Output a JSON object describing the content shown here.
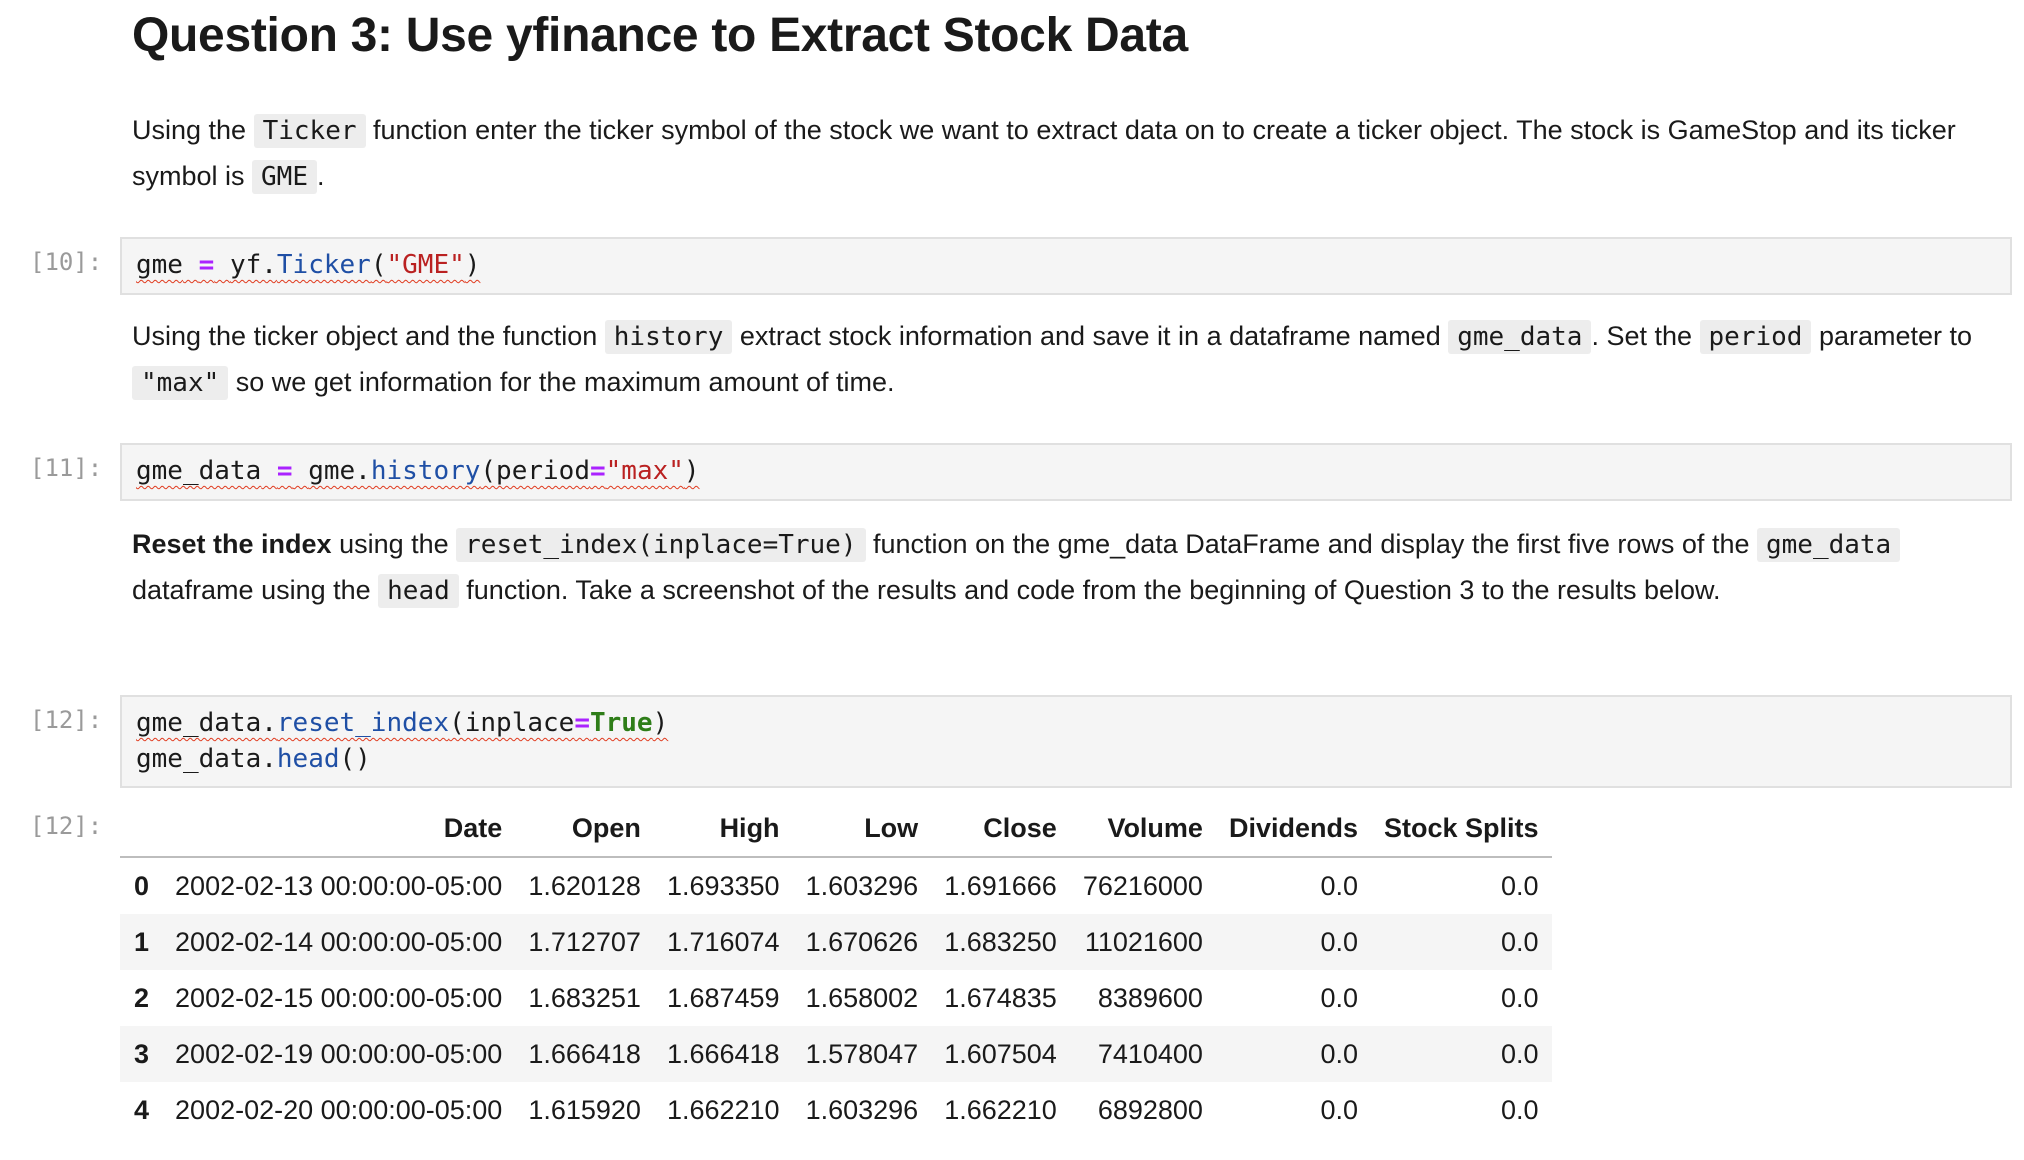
{
  "title": "Question 3: Use yfinance to Extract Stock Data",
  "para1": {
    "t1": "Using the ",
    "c1": "Ticker",
    "t2": " function enter the ticker symbol of the stock we want to extract data on to create a ticker object. The stock is GameStop and its ticker symbol is ",
    "c2": "GME",
    "t3": "."
  },
  "cell10": {
    "prompt": "[10]:",
    "tokens": [
      "gme",
      " ",
      "=",
      " ",
      "yf.",
      "Ticker",
      "(",
      "\"GME\"",
      ")"
    ]
  },
  "para2": {
    "t1": "Using the ticker object and the function ",
    "c1": "history",
    "t2": " extract stock information and save it in a dataframe named ",
    "c2": "gme_data",
    "t3": ". Set the ",
    "c3": "period",
    "t4": " parameter to ",
    "c4": "\"max\"",
    "t5": " so we get information for the maximum amount of time."
  },
  "cell11": {
    "prompt": "[11]:",
    "tokens": [
      "gme_data",
      " ",
      "=",
      " ",
      "gme.",
      "history",
      "(period",
      "=",
      "\"max\"",
      ")"
    ]
  },
  "para3": {
    "bold": "Reset the index",
    "t1": " using the ",
    "c1": "reset_index(inplace=True)",
    "t2": " function on the gme_data DataFrame and display the first five rows of the ",
    "c2": "gme_data",
    "t3": " dataframe using the ",
    "c3": "head",
    "t4": " function. Take a screenshot of the results and code from the beginning of Question 3 to the results below."
  },
  "cell12": {
    "prompt": "[12]:",
    "line1": [
      "gme_data.",
      "reset_index",
      "(inplace",
      "=",
      "True",
      ")"
    ],
    "line2": [
      "gme_data.",
      "head",
      "()"
    ]
  },
  "output12": {
    "prompt": "[12]:",
    "columns": [
      "",
      "Date",
      "Open",
      "High",
      "Low",
      "Close",
      "Volume",
      "Dividends",
      "Stock Splits"
    ],
    "rows": [
      [
        "0",
        "2002-02-13 00:00:00-05:00",
        "1.620128",
        "1.693350",
        "1.603296",
        "1.691666",
        "76216000",
        "0.0",
        "0.0"
      ],
      [
        "1",
        "2002-02-14 00:00:00-05:00",
        "1.712707",
        "1.716074",
        "1.670626",
        "1.683250",
        "11021600",
        "0.0",
        "0.0"
      ],
      [
        "2",
        "2002-02-15 00:00:00-05:00",
        "1.683251",
        "1.687459",
        "1.658002",
        "1.674835",
        "8389600",
        "0.0",
        "0.0"
      ],
      [
        "3",
        "2002-02-19 00:00:00-05:00",
        "1.666418",
        "1.666418",
        "1.578047",
        "1.607504",
        "7410400",
        "0.0",
        "0.0"
      ],
      [
        "4",
        "2002-02-20 00:00:00-05:00",
        "1.615920",
        "1.662210",
        "1.603296",
        "1.662210",
        "6892800",
        "0.0",
        "0.0"
      ]
    ]
  }
}
